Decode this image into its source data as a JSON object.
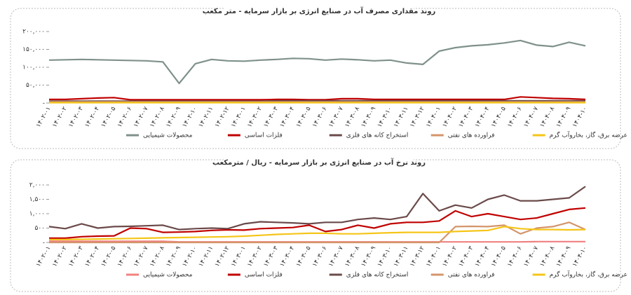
{
  "chart_data": [
    {
      "type": "line",
      "title": "روند مقداری مصرف آب در صنایع انرژی بر بازار سرمایه - متر مکعب",
      "categories": [
        "۱۴۰۲-۰۱",
        "۱۴۰۲-۰۲",
        "۱۴۰۲-۰۳",
        "۱۴۰۲-۰۴",
        "۱۴۰۲-۰۵",
        "۱۴۰۲-۰۶",
        "۱۴۰۲-۰۷",
        "۱۴۰۲-۰۸",
        "۱۴۰۲-۰۹",
        "۱۴۰۲-۱۰",
        "۱۴۰۲-۱۱",
        "۱۴۰۲-۱۲",
        "۱۴۰۳-۰۱",
        "۱۴۰۳-۰۲",
        "۱۴۰۳-۰۳",
        "۱۴۰۳-۰۴",
        "۱۴۰۳-۰۵",
        "۱۴۰۳-۰۶",
        "۱۴۰۳-۰۷",
        "۱۴۰۳-۰۸",
        "۱۴۰۳-۰۹",
        "۱۴۰۳-۱۰",
        "۱۴۰۳-۱۱",
        "۱۴۰۳-۱۲",
        "۱۴۰۴-۰۱",
        "۱۴۰۴-۰۲",
        "۱۴۰۴-۰۳",
        "۱۴۰۴-۰۴",
        "۱۴۰۴-۰۵",
        "۱۴۰۴-۰۶",
        "۱۴۰۴-۰۷",
        "۱۴۰۴-۰۸",
        "۱۴۰۴-۰۹",
        "۱۴۰۴-۱۰"
      ],
      "ylim": [
        0,
        200000
      ],
      "yticks": [
        {
          "value": 0,
          "label": "-"
        },
        {
          "value": 50000,
          "label": "۵۰,۰۰۰"
        },
        {
          "value": 100000,
          "label": "۱۰۰,۰۰۰"
        },
        {
          "value": 150000,
          "label": "۱۵۰,۰۰۰"
        },
        {
          "value": 200000,
          "label": "۲۰۰,۰۰۰"
        }
      ],
      "series": [
        {
          "name": "محصولات شیمیایی",
          "color": "#7f918a",
          "values": [
            120000,
            121000,
            122000,
            121000,
            120000,
            119000,
            118000,
            115000,
            55000,
            110000,
            122000,
            118000,
            117000,
            120000,
            122000,
            125000,
            124000,
            120000,
            123000,
            121000,
            118000,
            120000,
            112000,
            108000,
            145000,
            155000,
            160000,
            163000,
            168000,
            175000,
            162000,
            158000,
            170000,
            160000
          ]
        },
        {
          "name": "فلزات اساسی",
          "color": "#c00000",
          "values": [
            10000,
            10000,
            12000,
            14000,
            15000,
            9000,
            9000,
            9000,
            9000,
            9000,
            9000,
            9000,
            9000,
            9000,
            10000,
            10000,
            9000,
            9000,
            12000,
            12000,
            10000,
            10000,
            10000,
            10000,
            10000,
            10000,
            10000,
            10000,
            10000,
            17000,
            15000,
            13000,
            12000,
            10000
          ]
        },
        {
          "name": "استخراج کانه های فلزی",
          "color": "#6b4a4a",
          "values": [
            5000,
            5000,
            5000,
            5000,
            5000,
            5000,
            5000,
            5000,
            5000,
            5000,
            5000,
            5000,
            5000,
            5000,
            6000,
            6000,
            6000,
            6000,
            6000,
            6000,
            6000,
            6000,
            6000,
            6000,
            6000,
            6000,
            6000,
            6000,
            6000,
            6000,
            6000,
            6000,
            6000,
            6000
          ]
        },
        {
          "name": "فراورده های نفتی",
          "color": "#d4956a",
          "values": [
            3000,
            3000,
            3000,
            3000,
            3000,
            3000,
            3000,
            3000,
            3000,
            3000,
            3000,
            3000,
            3000,
            3000,
            3000,
            3000,
            3000,
            3000,
            3000,
            3000,
            3000,
            3000,
            3000,
            3000,
            3000,
            3000,
            3000,
            3000,
            3000,
            3000,
            3000,
            3000,
            3000,
            3000
          ]
        },
        {
          "name": "عرضه برق، گاز، بخاروآب گرم",
          "color": "#f5c518",
          "values": [
            1000,
            1000,
            1000,
            1000,
            1000,
            1000,
            1000,
            1000,
            1000,
            1000,
            1000,
            1000,
            1000,
            1000,
            1000,
            1000,
            1000,
            1000,
            1000,
            1000,
            1000,
            1000,
            1000,
            1000,
            1000,
            1000,
            1000,
            1000,
            1000,
            1000,
            1000,
            1000,
            1000,
            1000
          ]
        }
      ]
    },
    {
      "type": "line",
      "title": "روند نرخ آب در صنایع انرژی بر بازار سرمایه - ریال / مترمکعب",
      "categories": [
        "۱۴۰۲-۰۱",
        "۱۴۰۲-۰۲",
        "۱۴۰۲-۰۳",
        "۱۴۰۲-۰۴",
        "۱۴۰۲-۰۵",
        "۱۴۰۲-۰۶",
        "۱۴۰۲-۰۷",
        "۱۴۰۲-۰۸",
        "۱۴۰۲-۰۹",
        "۱۴۰۲-۱۰",
        "۱۴۰۲-۱۱",
        "۱۴۰۲-۱۲",
        "۱۴۰۳-۰۱",
        "۱۴۰۳-۰۲",
        "۱۴۰۳-۰۳",
        "۱۴۰۳-۰۴",
        "۱۴۰۳-۰۵",
        "۱۴۰۳-۰۶",
        "۱۴۰۳-۰۷",
        "۱۴۰۳-۰۸",
        "۱۴۰۳-۰۹",
        "۱۴۰۳-۱۰",
        "۱۴۰۳-۱۱",
        "۱۴۰۳-۱۲",
        "۱۴۰۴-۰۱",
        "۱۴۰۴-۰۲",
        "۱۴۰۴-۰۳",
        "۱۴۰۴-۰۴",
        "۱۴۰۴-۰۵",
        "۱۴۰۴-۰۶",
        "۱۴۰۴-۰۷",
        "۱۴۰۴-۰۸",
        "۱۴۰۴-۰۹",
        "۱۴۰۴-۱۰"
      ],
      "ylim": [
        0,
        2000
      ],
      "yticks": [
        {
          "value": 0,
          "label": "-"
        },
        {
          "value": 500,
          "label": "۵۰۰"
        },
        {
          "value": 1000,
          "label": "۱,۰۰۰"
        },
        {
          "value": 1500,
          "label": "۱,۵۰۰"
        },
        {
          "value": 2000,
          "label": "۲,۰۰۰"
        }
      ],
      "series": [
        {
          "name": "محصولات شیمیایی",
          "color": "#f08080",
          "values": [
            40,
            40,
            40,
            40,
            40,
            40,
            40,
            40,
            20,
            20,
            20,
            20,
            20,
            20,
            20,
            20,
            20,
            20,
            20,
            20,
            20,
            20,
            20,
            20,
            20,
            20,
            20,
            20,
            20,
            20,
            30,
            30,
            30,
            30
          ]
        },
        {
          "name": "فلزات اساسی",
          "color": "#c00000",
          "values": [
            150,
            150,
            200,
            220,
            230,
            500,
            480,
            350,
            360,
            380,
            420,
            440,
            430,
            480,
            500,
            520,
            600,
            380,
            450,
            600,
            500,
            650,
            700,
            700,
            750,
            1100,
            900,
            1000,
            900,
            800,
            850,
            1000,
            1150,
            1200
          ]
        },
        {
          "name": "استخراج کانه های فلزی",
          "color": "#6b4a4a",
          "values": [
            550,
            480,
            650,
            500,
            550,
            560,
            580,
            600,
            450,
            480,
            500,
            480,
            650,
            720,
            700,
            680,
            650,
            700,
            700,
            800,
            850,
            800,
            900,
            1700,
            1100,
            1300,
            1200,
            1500,
            1650,
            1450,
            1450,
            1500,
            1550,
            1950
          ]
        },
        {
          "name": "فراورده های نفتی",
          "color": "#d4956a",
          "values": [
            0,
            0,
            0,
            0,
            0,
            0,
            0,
            0,
            0,
            0,
            0,
            0,
            0,
            0,
            0,
            0,
            0,
            0,
            0,
            0,
            0,
            0,
            0,
            0,
            0,
            550,
            560,
            550,
            600,
            300,
            500,
            550,
            700,
            450
          ]
        },
        {
          "name": "عرضه برق، گاز، بخاروآب گرم",
          "color": "#f5c518",
          "values": [
            100,
            100,
            110,
            120,
            130,
            140,
            150,
            160,
            170,
            180,
            190,
            200,
            220,
            250,
            280,
            300,
            320,
            320,
            300,
            300,
            320,
            340,
            350,
            350,
            350,
            380,
            400,
            420,
            550,
            480,
            450,
            450,
            440,
            450
          ]
        }
      ]
    }
  ]
}
